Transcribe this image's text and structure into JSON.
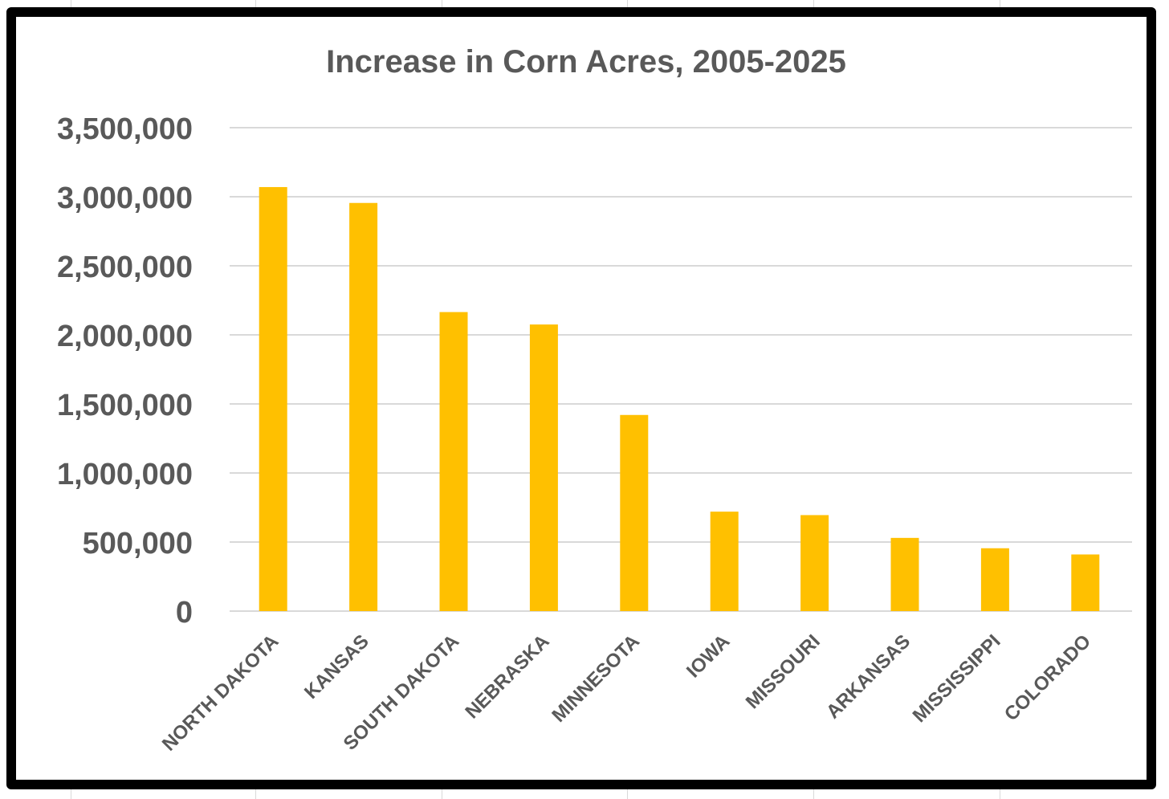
{
  "chart_data": {
    "type": "bar",
    "title": "Increase in Corn Acres, 2005-2025",
    "xlabel": "",
    "ylabel": "",
    "categories": [
      "NORTH DAKOTA",
      "KANSAS",
      "SOUTH DAKOTA",
      "NEBRASKA",
      "MINNESOTA",
      "IOWA",
      "MISSOURI",
      "ARKANSAS",
      "MISSISSIPPI",
      "COLORADO"
    ],
    "values": [
      3070000,
      2955000,
      2165000,
      2075000,
      1420000,
      720000,
      695000,
      530000,
      455000,
      410000
    ],
    "ylim": [
      0,
      3500000
    ],
    "yticks": [
      "0",
      "500,000",
      "1,000,000",
      "1,500,000",
      "2,000,000",
      "2,500,000",
      "3,000,000",
      "3,500,000"
    ],
    "ytick_values": [
      0,
      500000,
      1000000,
      1500000,
      2000000,
      2500000,
      3000000,
      3500000
    ],
    "grid": true,
    "legend": "none",
    "colors": {
      "bar": "#FFC000",
      "grid": "#d9d9d9",
      "text": "#595959",
      "frame": "#000000"
    }
  }
}
